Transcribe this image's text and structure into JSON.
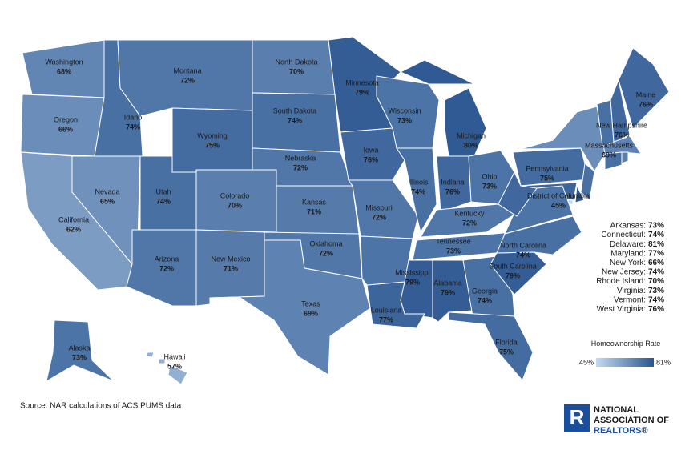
{
  "chart_data": {
    "type": "choropleth",
    "categories": [
      "Washington",
      "Oregon",
      "California",
      "Nevada",
      "Idaho",
      "Montana",
      "Wyoming",
      "Utah",
      "Colorado",
      "Arizona",
      "New Mexico",
      "North Dakota",
      "South Dakota",
      "Nebraska",
      "Kansas",
      "Oklahoma",
      "Texas",
      "Minnesota",
      "Iowa",
      "Missouri",
      "Wisconsin",
      "Illinois",
      "Michigan",
      "Indiana",
      "Ohio",
      "Kentucky",
      "Tennessee",
      "Mississippi",
      "Alabama",
      "Louisiana",
      "Georgia",
      "Florida",
      "South Carolina",
      "North Carolina",
      "Pennsylvania",
      "District of Columbia",
      "Maine",
      "New Hampshire",
      "Massachusetts",
      "Alaska",
      "Hawaii"
    ],
    "values": [
      68,
      66,
      62,
      65,
      74,
      72,
      75,
      74,
      70,
      72,
      71,
      70,
      74,
      72,
      71,
      72,
      69,
      79,
      76,
      72,
      73,
      74,
      80,
      76,
      73,
      72,
      73,
      79,
      79,
      77,
      74,
      75,
      79,
      74,
      75,
      45,
      76,
      76,
      69,
      73,
      57
    ],
    "value_labels": [
      "68%",
      "66%",
      "62%",
      "65%",
      "74%",
      "72%",
      "75%",
      "74%",
      "70%",
      "72%",
      "71%",
      "70%",
      "74%",
      "72%",
      "71%",
      "72%",
      "69%",
      "79%",
      "76%",
      "72%",
      "73%",
      "74%",
      "80%",
      "76%",
      "73%",
      "72%",
      "73%",
      "79%",
      "79%",
      "77%",
      "74%",
      "75%",
      "79%",
      "74%",
      "75%",
      "45%",
      "76%",
      "76%",
      "69%",
      "73%",
      "57%"
    ],
    "list_categories": [
      "Arkansas:",
      "Connecticut:",
      "Delaware:",
      "Maryland:",
      "New York:",
      "New Jersey:",
      "Rhode Island:",
      "Virginia:",
      "Vermont:",
      "West Virginia:"
    ],
    "list_values": [
      73,
      74,
      81,
      77,
      66,
      74,
      70,
      73,
      74,
      76
    ],
    "list_value_labels": [
      "73%",
      "74%",
      "81%",
      "77%",
      "66%",
      "74%",
      "70%",
      "73%",
      "74%",
      "76%"
    ],
    "legend_title": "Homeownership Rate",
    "colorlim": [
      45,
      81
    ],
    "legend_ticks": [
      {
        "value": 45,
        "label": "45%"
      },
      {
        "value": 81,
        "label": "81%"
      }
    ],
    "colors": [
      "#c4dbf2",
      "#2b5690"
    ],
    "source": "Source: NAR calculations of ACS PUMS data"
  },
  "logo": {
    "mark": "R",
    "lines": [
      "NATIONAL",
      "ASSOCIATION OF",
      "REALTORS®"
    ]
  }
}
